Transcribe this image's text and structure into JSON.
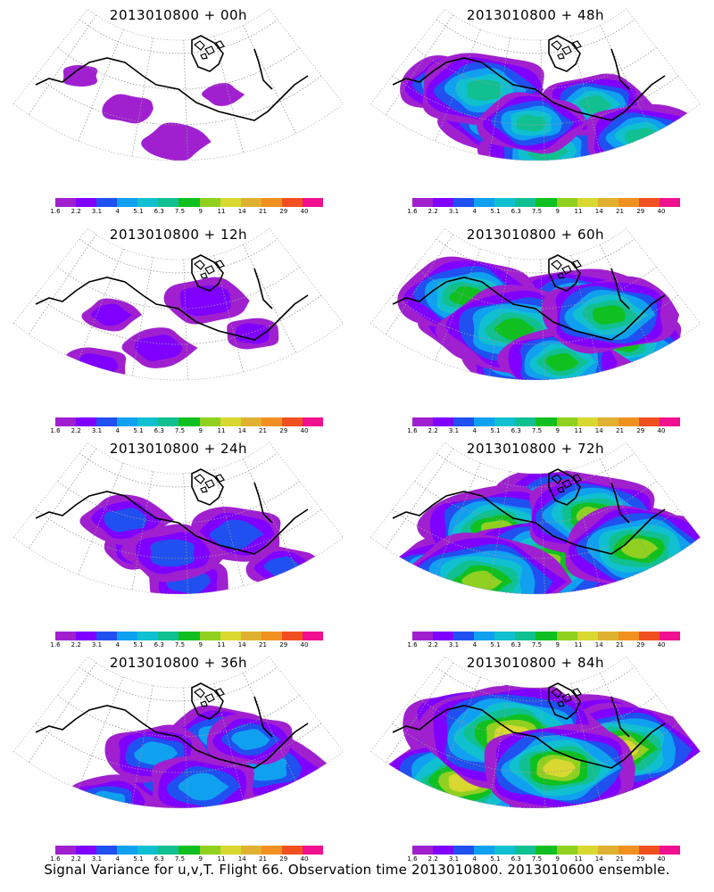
{
  "panels": [
    {
      "title": "2013010800  + 00h",
      "lead": 0
    },
    {
      "title": "2013010800  + 48h",
      "lead": 48
    },
    {
      "title": "2013010800  + 12h",
      "lead": 12
    },
    {
      "title": "2013010800  + 60h",
      "lead": 60
    },
    {
      "title": "2013010800  + 24h",
      "lead": 24
    },
    {
      "title": "2013010800  + 72h",
      "lead": 72
    },
    {
      "title": "2013010800  + 36h",
      "lead": 36
    },
    {
      "title": "2013010800  + 84h",
      "lead": 84
    }
  ],
  "colorbar": {
    "labels": [
      "1.6",
      "2.2",
      "3.1",
      "4",
      "5.1",
      "6.3",
      "7.5",
      "9",
      "11",
      "14",
      "21",
      "29",
      "40"
    ],
    "colors": [
      "#a020d0",
      "#8000ff",
      "#2050f0",
      "#10a0f0",
      "#10c0d0",
      "#10c090",
      "#10c020",
      "#90d020",
      "#d8d830",
      "#e0b030",
      "#f09020",
      "#f05020",
      "#f01090"
    ]
  },
  "footer": "Signal Variance for u,v,T. Flight 66. Observation time 2013010800. 2013010600 ensemble."
}
